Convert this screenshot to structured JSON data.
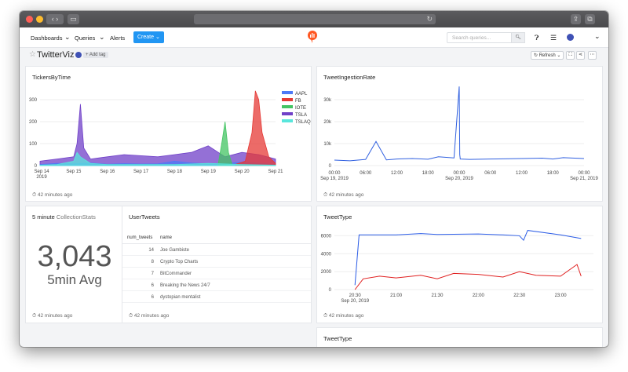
{
  "nav": {
    "dashboards": "Dashboards",
    "queries": "Queries",
    "alerts": "Alerts",
    "create": "Create",
    "search_placeholder": "Search queries..."
  },
  "dashboard": {
    "title": "TwitterViz",
    "add_tag": "+ Add tag",
    "refresh": "Refresh"
  },
  "colors": {
    "accent": "#2196f3",
    "logo": "#ff5722",
    "aapl": "#4d79f6",
    "fb": "#e53935",
    "iote": "#43c463",
    "tsla": "#7040c8",
    "tslaq": "#59e6dc",
    "ingestion": "#3060e0",
    "tweettype_blue": "#2b5ce6",
    "tweettype_red": "#e02020"
  },
  "panels": {
    "tickers": {
      "title": "TickersByTime",
      "footer": "42 minutes ago",
      "chart_data": {
        "type": "area",
        "x_ticks": [
          "Sep 14\n2019",
          "Sep 15",
          "Sep 16",
          "Sep 17",
          "Sep 18",
          "Sep 19",
          "Sep 20",
          "Sep 21"
        ],
        "y_ticks": [
          0,
          100,
          200,
          300
        ],
        "ylim": [
          0,
          350
        ],
        "series": [
          {
            "name": "AAPL",
            "x": [
              0,
              0.5,
              1,
              1.5,
              2,
              2.5,
              3,
              3.5,
              4,
              4.5,
              5,
              5.5,
              6,
              6.5,
              7
            ],
            "values": [
              5,
              10,
              8,
              12,
              6,
              9,
              7,
              8,
              20,
              12,
              8,
              10,
              15,
              10,
              5
            ]
          },
          {
            "name": "FB",
            "x": [
              5.8,
              6.1,
              6.3,
              6.4,
              6.5,
              6.6,
              6.8,
              7.0
            ],
            "values": [
              5,
              20,
              150,
              340,
              300,
              150,
              40,
              10
            ]
          },
          {
            "name": "IOTE",
            "x": [
              5.3,
              5.4,
              5.5,
              5.6,
              5.7
            ],
            "values": [
              10,
              100,
              200,
              60,
              10
            ]
          },
          {
            "name": "TSLA",
            "x": [
              0,
              0.5,
              1.0,
              1.1,
              1.2,
              1.3,
              1.5,
              2,
              2.5,
              3,
              3.5,
              4,
              4.5,
              5,
              5.5,
              6,
              6.5,
              7
            ],
            "values": [
              20,
              30,
              40,
              100,
              280,
              80,
              30,
              40,
              50,
              45,
              40,
              50,
              60,
              90,
              40,
              60,
              50,
              30
            ]
          },
          {
            "name": "TSLAQ",
            "x": [
              0,
              0.5,
              1.0,
              1.1,
              1.2,
              1.5,
              2,
              3,
              4,
              5,
              6,
              7
            ],
            "values": [
              2,
              5,
              20,
              60,
              40,
              10,
              5,
              5,
              5,
              10,
              5,
              2
            ]
          }
        ]
      }
    },
    "ingestion": {
      "title": "TweetIngestionRate",
      "footer": "42 minutes ago",
      "chart_data": {
        "type": "line",
        "x_ticks": [
          "00:00\nSep 19, 2019",
          "06:00",
          "12:00",
          "18:00",
          "00:00\nSep 20, 2019",
          "06:00",
          "12:00",
          "18:00",
          "00:00\nSep 21, 2019"
        ],
        "y_ticks": [
          "0",
          "10k",
          "20k",
          "30k"
        ],
        "ylim": [
          0,
          35000
        ],
        "series": [
          {
            "name": "",
            "x": [
              0,
              3,
              6,
              8,
              10,
              12,
              15,
              18,
              20,
              23,
              24,
              24.1,
              24.2,
              26,
              30,
              36,
              40,
              42,
              44,
              48
            ],
            "values": [
              2500,
              2200,
              2800,
              11000,
              2600,
              3000,
              3200,
              2900,
              4000,
              3500,
              36000,
              5000,
              3000,
              2800,
              3000,
              3200,
              3400,
              3000,
              3600,
              3200
            ]
          }
        ]
      }
    },
    "collection": {
      "title": "5 minute",
      "subtitle": "CollectionStats",
      "value": "3,043",
      "label": "5min Avg",
      "footer": "42 minutes ago"
    },
    "usertweets": {
      "title": "UserTweets",
      "columns": [
        "num_tweets",
        "name"
      ],
      "rows": [
        {
          "num": "14",
          "name": "Joe Gambiste"
        },
        {
          "num": "8",
          "name": "Crypto Top Charts"
        },
        {
          "num": "7",
          "name": "BitCommander"
        },
        {
          "num": "6",
          "name": "Breaking the News 24/7"
        },
        {
          "num": "6",
          "name": "dystopian mentalist"
        }
      ],
      "footer": "42 minutes ago"
    },
    "tweettype": {
      "title": "TweetType",
      "footer": "42 minutes ago",
      "chart_data": {
        "type": "line",
        "x_ticks": [
          "20:30\nSep 20, 2019",
          "21:00",
          "21:30",
          "22:00",
          "22:30",
          "23:00"
        ],
        "y_ticks": [
          0,
          2000,
          4000,
          6000
        ],
        "ylim": [
          0,
          7000
        ],
        "series": [
          {
            "name": "",
            "x": [
              20.5,
              20.55,
              21,
              21.3,
              21.5,
              22,
              22.3,
              22.5,
              22.55,
              22.6,
              23,
              23.25
            ],
            "values": [
              500,
              6100,
              6100,
              6250,
              6150,
              6200,
              6100,
              6000,
              5500,
              6600,
              6100,
              5700
            ]
          },
          {
            "name": "",
            "x": [
              20.5,
              20.6,
              20.8,
              21,
              21.3,
              21.5,
              21.7,
              22,
              22.3,
              22.5,
              22.7,
              23,
              23.2,
              23.25
            ],
            "values": [
              0,
              1200,
              1500,
              1300,
              1600,
              1200,
              1800,
              1700,
              1400,
              2000,
              1600,
              1500,
              2800,
              1500
            ]
          }
        ]
      }
    },
    "tweettype2": {
      "title": "TweetType"
    }
  }
}
